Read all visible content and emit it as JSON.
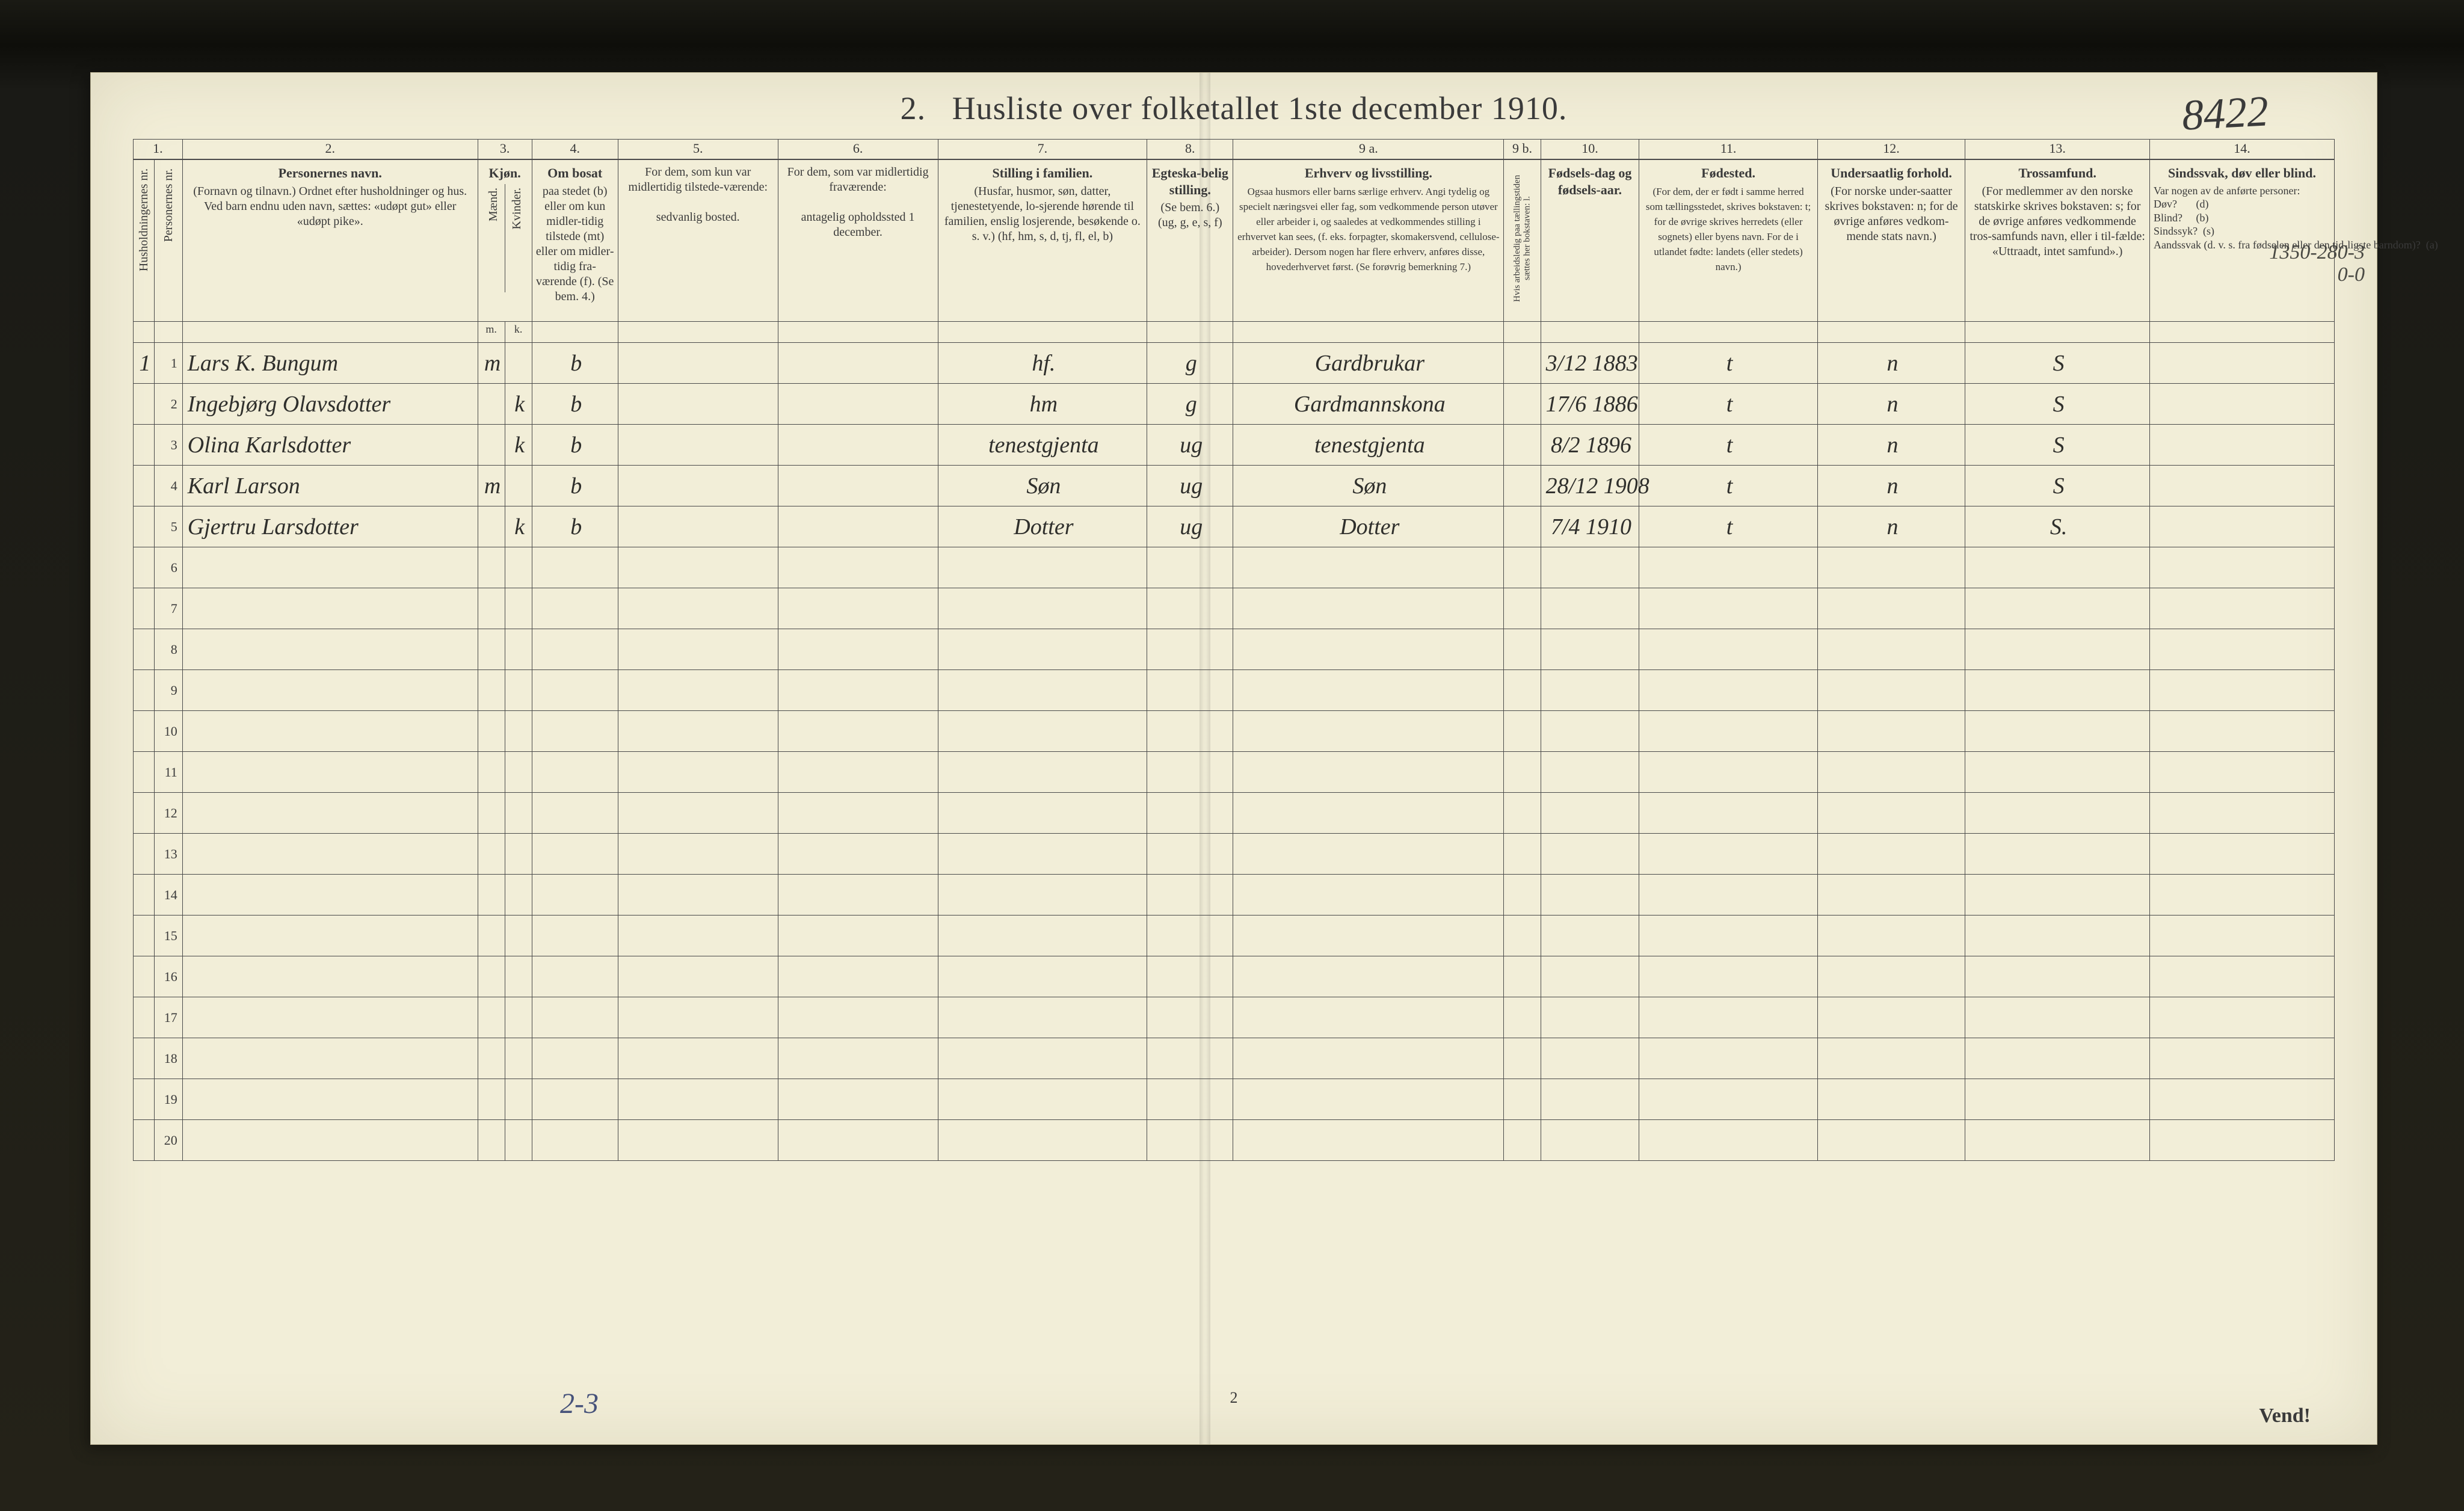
{
  "page": {
    "title_prefix": "2.",
    "title": "Husliste over folketallet 1ste december 1910.",
    "page_number": "2",
    "vend": "Vend!",
    "top_right_annotation": "8422",
    "bottom_left_annotation": "2-3",
    "margin_annotation": "1350-280-3\n          0-0"
  },
  "columns": {
    "num1": "1.",
    "num2": "2.",
    "num3": "3.",
    "num4": "4.",
    "num5": "5.",
    "num6": "6.",
    "num7": "7.",
    "num8": "8.",
    "num9a": "9 a.",
    "num9b": "9 b.",
    "num10": "10.",
    "num11": "11.",
    "num12": "12.",
    "num13": "13.",
    "num14": "14.",
    "c1_vert": "Husholdningernes nr.",
    "c1b_vert": "Personernes nr.",
    "c2_head": "Personernes navn.",
    "c2_sub": "(Fornavn og tilnavn.)\nOrdnet efter husholdninger og hus.\nVed barn endnu uden navn, sættes: «udøpt gut» eller «udøpt pike».",
    "c3_head": "Kjøn.",
    "c3_m": "Mænd.",
    "c3_k": "Kvinder.",
    "c3_sub_m": "m.",
    "c3_sub_k": "k.",
    "c4_head": "Om bosat",
    "c4_sub": "paa stedet (b) eller om kun midler-tidig tilstede (mt) eller om midler-tidig fra-værende (f). (Se bem. 4.)",
    "c5_head": "For dem, som kun var midlertidig tilstede-værende:",
    "c5_sub": "sedvanlig bosted.",
    "c6_head": "For dem, som var midlertidig fraværende:",
    "c6_sub": "antagelig opholdssted 1 december.",
    "c7_head": "Stilling i familien.",
    "c7_sub": "(Husfar, husmor, søn, datter, tjenestetyende, lo-sjerende hørende til familien, enslig losjerende, besøkende o. s. v.)\n(hf, hm, s, d, tj, fl, el, b)",
    "c8_head": "Egteska-belig stilling.",
    "c8_sub": "(Se bem. 6.)\n(ug, g, e, s, f)",
    "c9a_head": "Erhverv og livsstilling.",
    "c9a_sub": "Ogsaa husmors eller barns særlige erhverv. Angi tydelig og specielt næringsvei eller fag, som vedkommende person utøver eller arbeider i, og saaledes at vedkommendes stilling i erhvervet kan sees, (f. eks. forpagter, skomakersvend, cellulose-arbeider). Dersom nogen har flere erhverv, anføres disse, hovederhvervet først.\n(Se forøvrig bemerkning 7.)",
    "c9b_vert": "Hvis arbeidsledig paa tællingstiden sættes her bokstaven: l.",
    "c10_head": "Fødsels-dag og fødsels-aar.",
    "c11_head": "Fødested.",
    "c11_sub": "(For dem, der er født i samme herred som tællingsstedet, skrives bokstaven: t; for de øvrige skrives herredets (eller sognets) eller byens navn. For de i utlandet fødte: landets (eller stedets) navn.)",
    "c12_head": "Undersaatlig forhold.",
    "c12_sub": "(For norske under-saatter skrives bokstaven: n; for de øvrige anføres vedkom-mende stats navn.)",
    "c13_head": "Trossamfund.",
    "c13_sub": "(For medlemmer av den norske statskirke skrives bokstaven: s; for de øvrige anføres vedkommende tros-samfunds navn, eller i til-fælde: «Uttraadt, intet samfund».)",
    "c14_head": "Sindssvak, døv eller blind.",
    "c14_sub": "Var nogen av de anførte personer:\nDøv?       (d)\nBlind?     (b)\nSindssyk?  (s)\nAandssvak (d. v. s. fra fødselen eller den tid-ligste barndom)?  (a)"
  },
  "household_lead": "1",
  "rows": [
    {
      "nr": "1",
      "name": "Lars K. Bungum",
      "sex_m": "m",
      "sex_k": "",
      "res": "b",
      "c5": "",
      "c6": "",
      "c7": "hf.",
      "c8": "g",
      "c9a": "Gardbrukar",
      "c9b": "",
      "c10": "3/12 1883",
      "c11": "t",
      "c12": "n",
      "c13": "S",
      "c14": ""
    },
    {
      "nr": "2",
      "name": "Ingebjørg Olavsdotter",
      "sex_m": "",
      "sex_k": "k",
      "res": "b",
      "c5": "",
      "c6": "",
      "c7": "hm",
      "c8": "g",
      "c9a": "Gardmannskona",
      "c9b": "",
      "c10": "17/6 1886",
      "c11": "t",
      "c12": "n",
      "c13": "S",
      "c14": ""
    },
    {
      "nr": "3",
      "name": "Olina Karlsdotter",
      "sex_m": "",
      "sex_k": "k",
      "res": "b",
      "c5": "",
      "c6": "",
      "c7": "tenestgjenta",
      "c8": "ug",
      "c9a": "tenestgjenta",
      "c9b": "",
      "c10": "8/2 1896",
      "c11": "t",
      "c12": "n",
      "c13": "S",
      "c14": ""
    },
    {
      "nr": "4",
      "name": "Karl Larson",
      "sex_m": "m",
      "sex_k": "",
      "res": "b",
      "c5": "",
      "c6": "",
      "c7": "Søn",
      "c8": "ug",
      "c9a": "Søn",
      "c9b": "",
      "c10": "28/12 1908",
      "c11": "t",
      "c12": "n",
      "c13": "S",
      "c14": ""
    },
    {
      "nr": "5",
      "name": "Gjertru Larsdotter",
      "sex_m": "",
      "sex_k": "k",
      "res": "b",
      "c5": "",
      "c6": "",
      "c7": "Dotter",
      "c8": "ug",
      "c9a": "Dotter",
      "c9b": "",
      "c10": "7/4 1910",
      "c11": "t",
      "c12": "n",
      "c13": "S.",
      "c14": ""
    }
  ],
  "blank_rows": [
    "6",
    "7",
    "8",
    "9",
    "10",
    "11",
    "12",
    "13",
    "14",
    "15",
    "16",
    "17",
    "18",
    "19",
    "20"
  ],
  "colors": {
    "paper": "#f2eed8",
    "ink": "#3a3a3a",
    "handwriting": "#2f2f2c",
    "pencil_blue": "#46527a",
    "rule": "#4a4a4a",
    "desk": "#242218"
  }
}
